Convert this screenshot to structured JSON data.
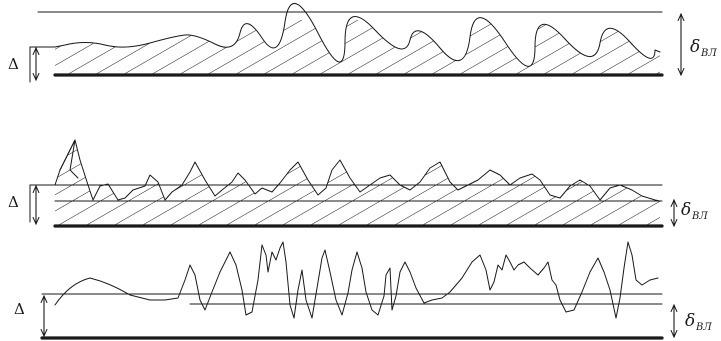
{
  "labels": {
    "delta": "Δ",
    "delta_small": "δ",
    "subscript": "ВЛ"
  }
}
